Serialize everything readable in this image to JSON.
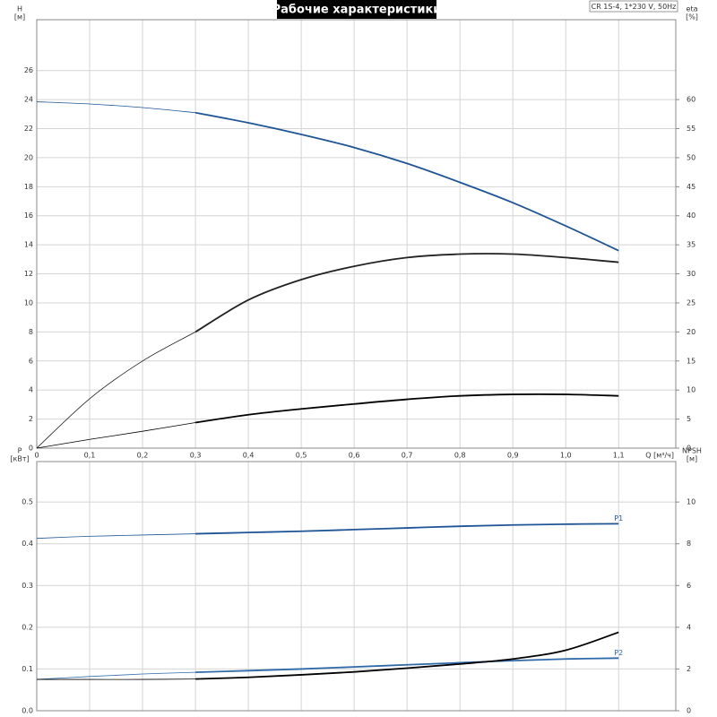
{
  "chart_data": [
    {
      "type": "line",
      "title": "Рабочие характеристики",
      "subtitle": "CR 1S-4, 1*230 V, 50Hz",
      "x_label": "Q [м³/ч]",
      "y_label": "H",
      "y_unit": "[м]",
      "y2_label": "eta",
      "y2_unit": "[%]",
      "xlim": [
        0,
        1.208
      ],
      "ylim": [
        0,
        29.5
      ],
      "y2lim": [
        0,
        73.75
      ],
      "duty_range": [
        0.3,
        1.1
      ],
      "grid": true,
      "xticks": [
        0,
        {
          "value": 0.1,
          "label": "0,1"
        },
        {
          "value": 0.2,
          "label": "0,2"
        },
        {
          "value": 0.3,
          "label": "0,3"
        },
        {
          "value": 0.4,
          "label": "0,4"
        },
        {
          "value": 0.5,
          "label": "0,5"
        },
        {
          "value": 0.6,
          "label": "0,6"
        },
        {
          "value": 0.7,
          "label": "0,7"
        },
        {
          "value": 0.8,
          "label": "0,8"
        },
        {
          "value": 0.9,
          "label": "0,9"
        },
        {
          "value": 1.0,
          "label": "1,0"
        },
        {
          "value": 1.1,
          "label": "1,1"
        }
      ],
      "yticks": [
        0,
        2,
        4,
        6,
        8,
        10,
        12,
        14,
        16,
        18,
        20,
        22,
        24,
        26
      ],
      "y2ticks": [
        0,
        5,
        10,
        15,
        20,
        25,
        30,
        35,
        40,
        45,
        50,
        55,
        60
      ],
      "x": [
        0,
        0.1,
        0.2,
        0.3,
        0.4,
        0.5,
        0.6,
        0.7,
        0.8,
        0.9,
        1.0,
        1.1
      ],
      "series": [
        {
          "color": "#1f5596",
          "values": [
            23.85,
            23.7,
            23.45,
            23.1,
            22.4,
            21.6,
            20.7,
            19.6,
            18.3,
            16.9,
            15.3,
            13.6
          ]
        },
        {
          "color": "#222222",
          "axis": "y2",
          "values": [
            0,
            8.5,
            15,
            20,
            25.5,
            29,
            31.3,
            32.8,
            33.4,
            33.4,
            32.8,
            32
          ]
        },
        {
          "color": "#000000",
          "axis": "y2",
          "values": [
            0,
            1.5,
            2.9,
            4.4,
            5.75,
            6.75,
            7.6,
            8.4,
            9,
            9.25,
            9.25,
            9
          ]
        }
      ]
    },
    {
      "type": "line",
      "y_label": "P",
      "y_unit": "[кВт]",
      "y2_label": "NPSH",
      "y2_unit": "[м]",
      "xlim": [
        0,
        1.208
      ],
      "ylim": [
        0,
        0.597
      ],
      "y2lim": [
        0,
        11.94
      ],
      "duty_range": [
        0.3,
        1.1
      ],
      "grid": true,
      "yticks": [
        {
          "value": 0,
          "label": "0.0"
        },
        0.1,
        0.2,
        0.3,
        0.4,
        0.5
      ],
      "y2ticks": [
        0,
        2,
        4,
        6,
        8,
        10
      ],
      "x": [
        0,
        0.1,
        0.2,
        0.3,
        0.4,
        0.5,
        0.6,
        0.7,
        0.8,
        0.9,
        1.0,
        1.1
      ],
      "series": [
        {
          "name": "P1",
          "color": "#1f5596",
          "values": [
            0.413,
            0.418,
            0.421,
            0.424,
            0.427,
            0.43,
            0.434,
            0.438,
            0.442,
            0.445,
            0.447,
            0.448
          ]
        },
        {
          "name": "P2",
          "color": "#2f6aa8",
          "values": [
            0.075,
            0.082,
            0.088,
            0.092,
            0.096,
            0.1,
            0.105,
            0.11,
            0.115,
            0.12,
            0.124,
            0.126
          ]
        },
        {
          "color": "#000000",
          "axis": "y2",
          "values": [
            1.5,
            1.5,
            1.5,
            1.52,
            1.6,
            1.72,
            1.86,
            2.04,
            2.24,
            2.48,
            2.9,
            3.76
          ]
        }
      ]
    }
  ]
}
